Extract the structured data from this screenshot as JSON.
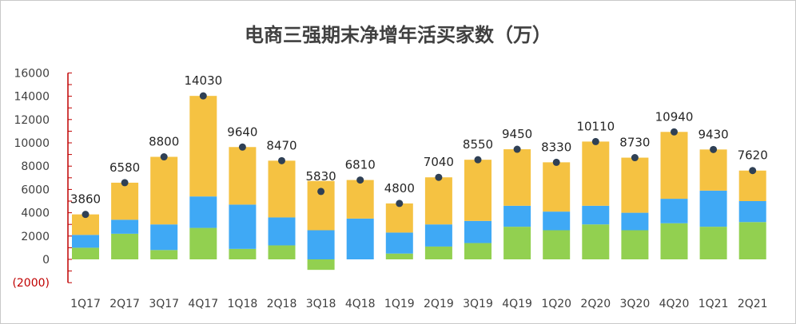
{
  "chart_data": {
    "type": "bar",
    "stacked": true,
    "title": "电商三强期末净增年活买家数（万）",
    "categories": [
      "1Q17",
      "2Q17",
      "3Q17",
      "4Q17",
      "1Q18",
      "2Q18",
      "3Q18",
      "4Q18",
      "1Q19",
      "2Q19",
      "3Q19",
      "4Q19",
      "1Q20",
      "2Q20",
      "3Q20",
      "4Q20",
      "1Q21",
      "2Q21"
    ],
    "series": [
      {
        "color": "#92d050",
        "values": [
          1000,
          2200,
          800,
          2700,
          900,
          1200,
          -900,
          0,
          500,
          1100,
          1400,
          2800,
          2500,
          3000,
          2500,
          3100,
          2800,
          3200
        ]
      },
      {
        "color": "#3fa9f5",
        "values": [
          1100,
          1200,
          2200,
          2700,
          3800,
          2400,
          2500,
          3500,
          1800,
          1900,
          1900,
          1800,
          1600,
          1600,
          1500,
          2100,
          3100,
          1800
        ]
      },
      {
        "color": "#f5c242",
        "values": [
          1760,
          3180,
          5800,
          8630,
          4940,
          4870,
          4230,
          3310,
          2500,
          4040,
          5250,
          4850,
          4230,
          5510,
          4730,
          5740,
          3530,
          2620
        ]
      }
    ],
    "totals": [
      3860,
      6580,
      8800,
      14030,
      9640,
      8470,
      5830,
      6810,
      4800,
      7040,
      8550,
      9450,
      8330,
      10110,
      8730,
      10940,
      9430,
      7620
    ],
    "y_ticks": [
      "16000",
      "14000",
      "12000",
      "10000",
      "8000",
      "6000",
      "4000",
      "2000",
      "0",
      "(2000)"
    ],
    "ylim": [
      -2000,
      16000
    ],
    "grid": false,
    "legend": "none",
    "total_marker_color": "#2f4055",
    "negative_tick_color": "#c00000",
    "axis_color": "#c00000"
  }
}
